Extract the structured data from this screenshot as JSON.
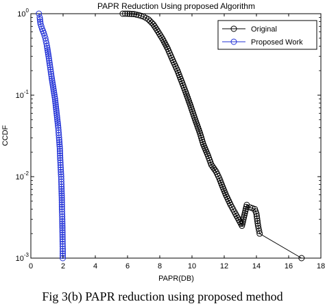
{
  "caption": "Fig 3(b) PAPR reduction using proposed method",
  "chart_data": {
    "type": "line",
    "title": "PAPR Reduction Using proposed Algorithm",
    "xlabel": "PAPR(DB)",
    "ylabel": "CCDF",
    "xlim": [
      0,
      18
    ],
    "ylim": [
      0.001,
      1
    ],
    "yscale": "log",
    "xticks": [
      "0",
      "2",
      "4",
      "6",
      "8",
      "10",
      "12",
      "14",
      "16",
      "18"
    ],
    "yticks": [
      {
        "base": "10",
        "exp": "0"
      },
      {
        "base": "10",
        "exp": "-1"
      },
      {
        "base": "10",
        "exp": "-2"
      },
      {
        "base": "10",
        "exp": "-3"
      }
    ],
    "grid": false,
    "legend_position": "top-right",
    "series": [
      {
        "name": "Original",
        "color": "#000000",
        "marker": "circle",
        "points": [
          [
            5.7,
            1.0
          ],
          [
            6.0,
            1.0
          ],
          [
            6.4,
            0.99
          ],
          [
            6.7,
            0.96
          ],
          [
            7.0,
            0.92
          ],
          [
            7.3,
            0.85
          ],
          [
            7.6,
            0.74
          ],
          [
            7.9,
            0.6
          ],
          [
            8.2,
            0.48
          ],
          [
            8.5,
            0.37
          ],
          [
            8.8,
            0.27
          ],
          [
            9.1,
            0.2
          ],
          [
            9.4,
            0.14
          ],
          [
            9.6,
            0.11
          ],
          [
            9.9,
            0.075
          ],
          [
            10.2,
            0.05
          ],
          [
            10.5,
            0.034
          ],
          [
            10.7,
            0.025
          ],
          [
            11.0,
            0.018
          ],
          [
            11.2,
            0.014
          ],
          [
            11.5,
            0.0115
          ],
          [
            11.7,
            0.0095
          ],
          [
            11.9,
            0.0075
          ],
          [
            12.1,
            0.006
          ],
          [
            12.4,
            0.0045
          ],
          [
            12.7,
            0.0035
          ],
          [
            13.1,
            0.0025
          ],
          [
            13.4,
            0.0045
          ],
          [
            13.6,
            0.0042
          ],
          [
            13.9,
            0.004
          ],
          [
            14.0,
            0.0035
          ],
          [
            14.1,
            0.0025
          ],
          [
            14.2,
            0.002
          ],
          [
            16.8,
            0.001
          ]
        ]
      },
      {
        "name": "Proposed Work",
        "color": "#1f2fd6",
        "marker": "circle",
        "points": [
          [
            0.5,
            1.0
          ],
          [
            0.55,
            0.9
          ],
          [
            0.6,
            0.75
          ],
          [
            0.7,
            0.65
          ],
          [
            0.8,
            0.58
          ],
          [
            0.9,
            0.5
          ],
          [
            1.0,
            0.4
          ],
          [
            1.1,
            0.3
          ],
          [
            1.2,
            0.22
          ],
          [
            1.3,
            0.16
          ],
          [
            1.4,
            0.12
          ],
          [
            1.5,
            0.09
          ],
          [
            1.6,
            0.06
          ],
          [
            1.7,
            0.04
          ],
          [
            1.75,
            0.03
          ],
          [
            1.8,
            0.022
          ],
          [
            1.82,
            0.017
          ],
          [
            1.85,
            0.013
          ],
          [
            1.88,
            0.01
          ],
          [
            1.9,
            0.0075
          ],
          [
            1.92,
            0.0055
          ],
          [
            1.93,
            0.004
          ],
          [
            1.95,
            0.003
          ],
          [
            1.96,
            0.0022
          ],
          [
            1.97,
            0.0016
          ],
          [
            1.98,
            0.0013
          ],
          [
            1.98,
            0.001
          ]
        ]
      }
    ]
  }
}
